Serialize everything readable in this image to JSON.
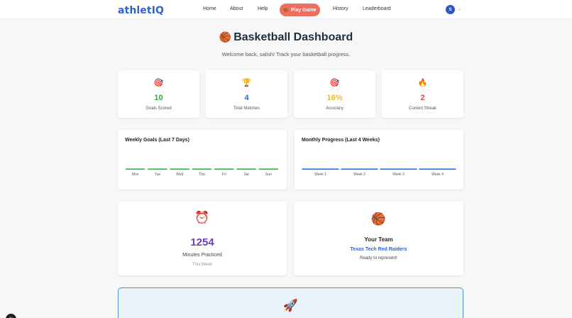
{
  "nav": {
    "logo": "athletIQ",
    "links": [
      "Home",
      "About",
      "Help"
    ],
    "play_icon": "🏀",
    "play_label": "Play Game",
    "links_right": [
      "History",
      "Leaderboard"
    ],
    "avatar_initial": "S",
    "chevron": "⌄"
  },
  "header": {
    "icon": "🏀",
    "title": "Basketball Dashboard",
    "subtitle": "Welcome back, salish! Track your basketball progress."
  },
  "stats": [
    {
      "icon": "🎯",
      "value": "10",
      "label": "Goals Scored",
      "color": "#3aa44a"
    },
    {
      "icon": "🏆",
      "value": "4",
      "label": "Total Matches",
      "color": "#2f62d6"
    },
    {
      "icon": "🎯",
      "value": "16%",
      "label": "Accuracy",
      "color": "#f0b429"
    },
    {
      "icon": "🔥",
      "value": "2",
      "label": "Current Streak",
      "color": "#e0463a"
    }
  ],
  "weekly": {
    "title": "Weekly Goals (Last 7 Days)",
    "color": "#3aa44a"
  },
  "monthly": {
    "title": "Monthly Progress (Last 4 Weeks)",
    "color": "#2f62d6"
  },
  "chart_data": [
    {
      "type": "bar",
      "title": "Weekly Goals (Last 7 Days)",
      "categories": [
        "Mon",
        "Tue",
        "Wed",
        "Thu",
        "Fri",
        "Sat",
        "Sun"
      ],
      "values": [
        0,
        0,
        0,
        0,
        0,
        0,
        0
      ]
    },
    {
      "type": "bar",
      "title": "Monthly Progress (Last 4 Weeks)",
      "categories": [
        "Week 1",
        "Week 2",
        "Week 3",
        "Week 4"
      ],
      "values": [
        0,
        0,
        0,
        0
      ]
    }
  ],
  "minutes": {
    "icon": "⏰",
    "value": "1254",
    "label": "Minutes Practiced",
    "sub": "This Week"
  },
  "team": {
    "icon": "🏀",
    "heading": "Your Team",
    "name": "Texas Tech Red Raiders",
    "sub": "Ready to represent!"
  },
  "banner": {
    "icon": "🚀"
  }
}
